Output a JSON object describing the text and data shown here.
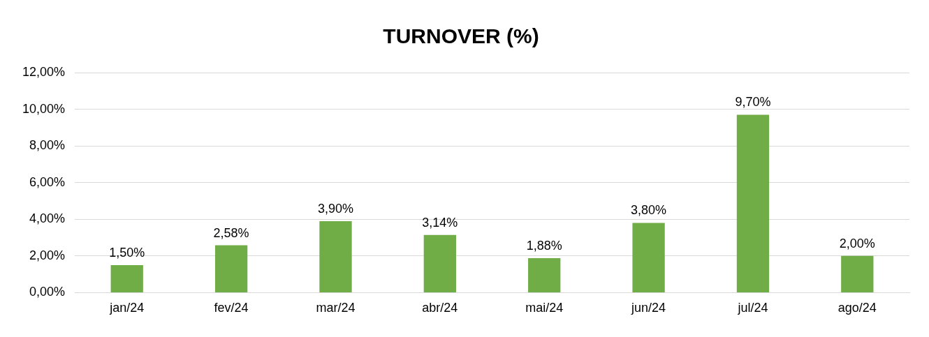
{
  "chart_data": {
    "type": "bar",
    "title": "TURNOVER (%)",
    "categories": [
      "jan/24",
      "fev/24",
      "mar/24",
      "abr/24",
      "mai/24",
      "jun/24",
      "jul/24",
      "ago/24"
    ],
    "values": [
      1.5,
      2.58,
      3.9,
      3.14,
      1.88,
      3.8,
      9.7,
      2.0
    ],
    "value_labels": [
      "1,50%",
      "2,58%",
      "3,90%",
      "3,14%",
      "1,88%",
      "3,80%",
      "9,70%",
      "2,00%"
    ],
    "color": "#70ad47",
    "ylim": [
      0,
      12
    ],
    "yticks": [
      {
        "value": 0,
        "label": "0,00%"
      },
      {
        "value": 2,
        "label": "2,00%"
      },
      {
        "value": 4,
        "label": "4,00%"
      },
      {
        "value": 6,
        "label": "6,00%"
      },
      {
        "value": 8,
        "label": "8,00%"
      },
      {
        "value": 10,
        "label": "10,00%"
      },
      {
        "value": 12,
        "label": "12,00%"
      }
    ],
    "grid": "y",
    "legend": false
  }
}
